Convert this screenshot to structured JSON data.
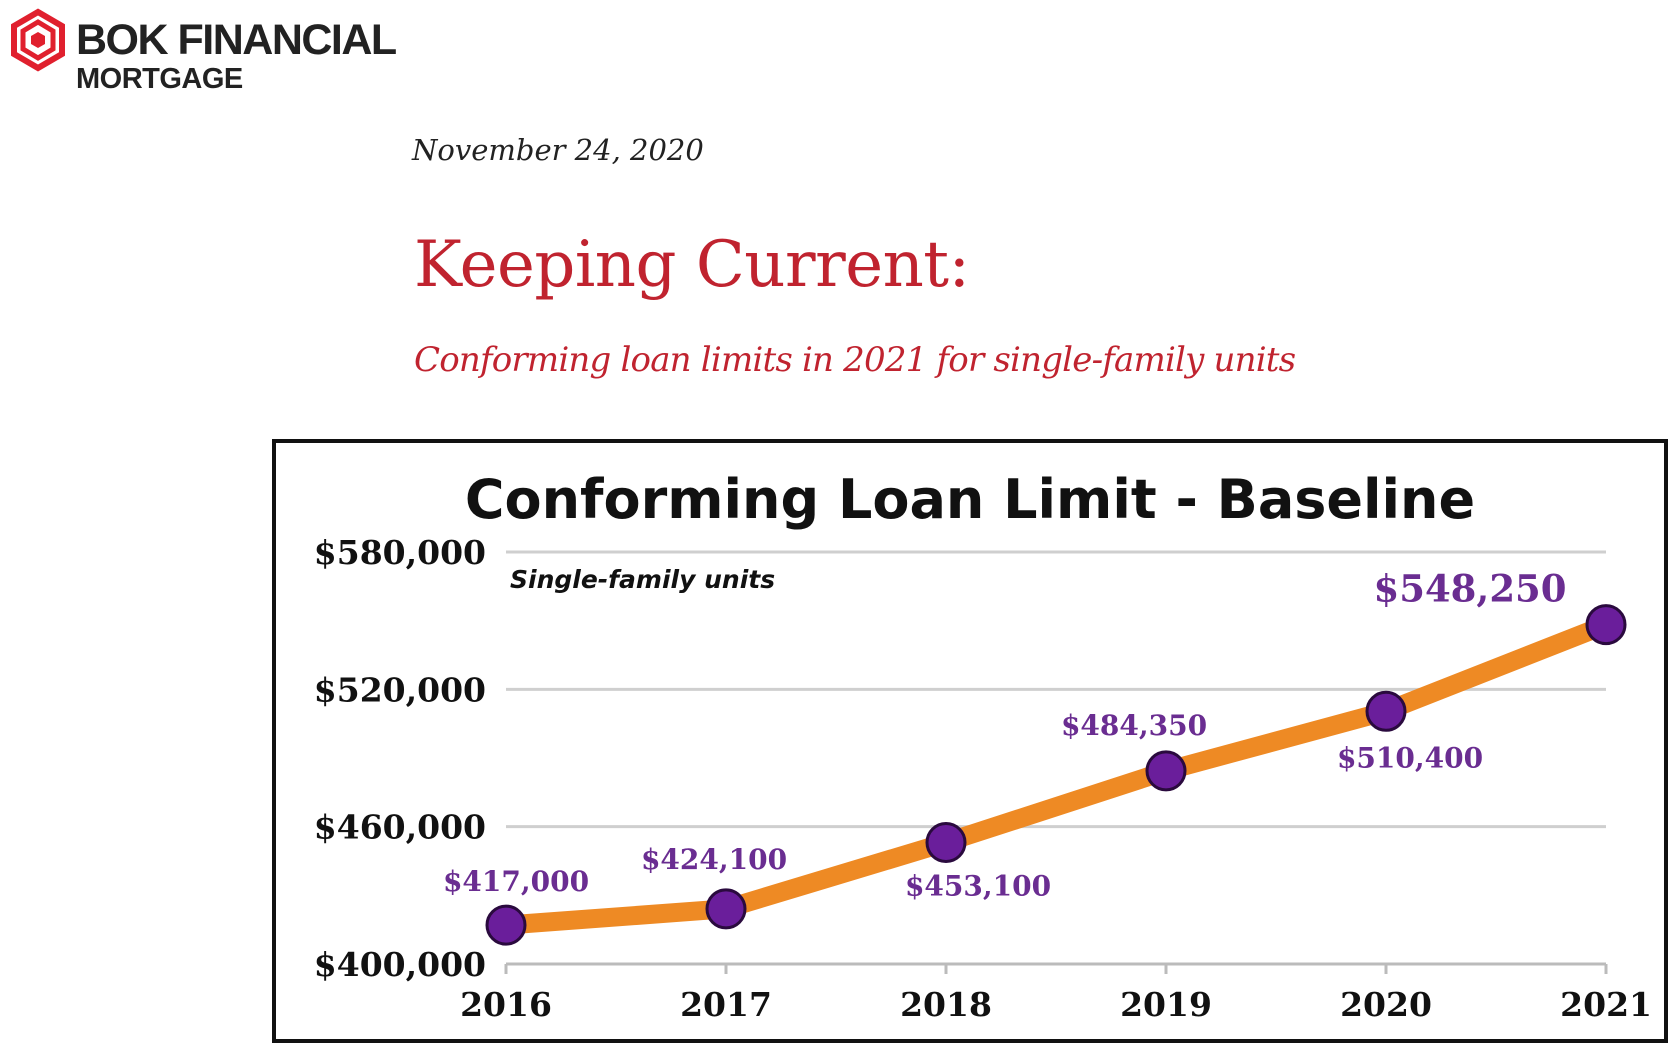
{
  "brand": {
    "name": "BOK FINANCIAL",
    "sub": "MORTGAGE",
    "logo_icon": "bok-hexagon-logo",
    "logo_color": "#e0202e"
  },
  "article": {
    "date": "November 24, 2020",
    "headline": "Keeping Current:",
    "subhead": "Conforming loan limits in 2021 for single-family units",
    "accent_color": "#c0232f"
  },
  "chart_data": {
    "type": "line",
    "title": "Conforming Loan Limit - Baseline",
    "annotation": "Single-family units",
    "xlabel": "",
    "ylabel": "",
    "x": [
      "2016",
      "2017",
      "2018",
      "2019",
      "2020",
      "2021"
    ],
    "values": [
      417000,
      424100,
      453100,
      484350,
      510400,
      548250
    ],
    "data_labels": [
      "$417,000",
      "$424,100",
      "$453,100",
      "$484,350",
      "$510,400",
      "$548,250"
    ],
    "ylim": [
      400000,
      580000
    ],
    "yticks": [
      400000,
      460000,
      520000,
      580000
    ],
    "ytick_labels": [
      "$400,000",
      "$460,000",
      "$520,000",
      "$580,000"
    ],
    "grid": true,
    "line_color": "#ee8a24",
    "marker_color": "#6a1e9b",
    "label_color": "#6a2d91"
  }
}
